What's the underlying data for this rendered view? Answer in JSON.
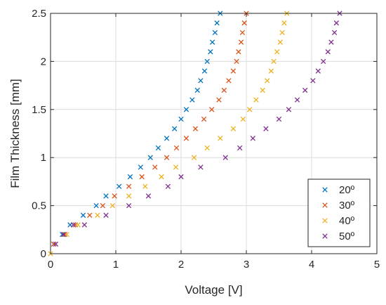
{
  "chart_data": {
    "type": "scatter",
    "title": "",
    "xlabel": "Voltage [V]",
    "ylabel": "Film Thickness [mm]",
    "xlim": [
      0,
      5
    ],
    "ylim": [
      0,
      2.5
    ],
    "xticks": [
      0,
      1,
      2,
      3,
      4,
      5
    ],
    "xtick_labels": [
      "0",
      "1",
      "2",
      "3",
      "4",
      "5"
    ],
    "yticks": [
      0,
      0.5,
      1,
      1.5,
      2,
      2.5
    ],
    "ytick_labels": [
      "0",
      "0.5",
      "1",
      "1.5",
      "2",
      "2.5"
    ],
    "grid": true,
    "legend_position": "bottom-right",
    "marker": "x",
    "series": [
      {
        "name": "20º",
        "color": "#0072BD",
        "points": [
          [
            0.05,
            0.1
          ],
          [
            0.18,
            0.2
          ],
          [
            0.3,
            0.3
          ],
          [
            0.5,
            0.4
          ],
          [
            0.7,
            0.5
          ],
          [
            0.85,
            0.6
          ],
          [
            1.05,
            0.7
          ],
          [
            1.22,
            0.8
          ],
          [
            1.38,
            0.9
          ],
          [
            1.53,
            1.0
          ],
          [
            1.65,
            1.1
          ],
          [
            1.78,
            1.2
          ],
          [
            1.9,
            1.3
          ],
          [
            2.0,
            1.4
          ],
          [
            2.08,
            1.5
          ],
          [
            2.17,
            1.6
          ],
          [
            2.25,
            1.7
          ],
          [
            2.3,
            1.8
          ],
          [
            2.36,
            1.9
          ],
          [
            2.4,
            2.0
          ],
          [
            2.45,
            2.1
          ],
          [
            2.48,
            2.2
          ],
          [
            2.52,
            2.3
          ],
          [
            2.55,
            2.4
          ],
          [
            2.6,
            2.5
          ]
        ]
      },
      {
        "name": "30º",
        "color": "#D95319",
        "points": [
          [
            0.05,
            0.1
          ],
          [
            0.22,
            0.2
          ],
          [
            0.38,
            0.3
          ],
          [
            0.6,
            0.4
          ],
          [
            0.8,
            0.5
          ],
          [
            0.98,
            0.6
          ],
          [
            1.2,
            0.7
          ],
          [
            1.4,
            0.8
          ],
          [
            1.6,
            0.9
          ],
          [
            1.78,
            1.0
          ],
          [
            1.93,
            1.1
          ],
          [
            2.08,
            1.2
          ],
          [
            2.22,
            1.3
          ],
          [
            2.35,
            1.4
          ],
          [
            2.47,
            1.5
          ],
          [
            2.58,
            1.6
          ],
          [
            2.66,
            1.7
          ],
          [
            2.73,
            1.8
          ],
          [
            2.8,
            1.9
          ],
          [
            2.85,
            2.0
          ],
          [
            2.88,
            2.1
          ],
          [
            2.92,
            2.2
          ],
          [
            2.94,
            2.3
          ],
          [
            2.97,
            2.4
          ],
          [
            3.0,
            2.5
          ]
        ]
      },
      {
        "name": "40º",
        "color": "#EDB120",
        "points": [
          [
            0.0,
            0.0
          ],
          [
            0.25,
            0.2
          ],
          [
            0.42,
            0.3
          ],
          [
            0.72,
            0.4
          ],
          [
            0.95,
            0.5
          ],
          [
            1.2,
            0.6
          ],
          [
            1.45,
            0.7
          ],
          [
            1.7,
            0.8
          ],
          [
            1.92,
            0.9
          ],
          [
            2.2,
            1.0
          ],
          [
            2.4,
            1.1
          ],
          [
            2.6,
            1.2
          ],
          [
            2.8,
            1.3
          ],
          [
            2.95,
            1.4
          ],
          [
            3.05,
            1.5
          ],
          [
            3.15,
            1.6
          ],
          [
            3.25,
            1.7
          ],
          [
            3.32,
            1.8
          ],
          [
            3.38,
            1.9
          ],
          [
            3.42,
            2.0
          ],
          [
            3.47,
            2.1
          ],
          [
            3.52,
            2.2
          ],
          [
            3.55,
            2.3
          ],
          [
            3.58,
            2.4
          ],
          [
            3.62,
            2.5
          ]
        ]
      },
      {
        "name": "50º",
        "color": "#7E2F8E",
        "points": [
          [
            0.08,
            0.1
          ],
          [
            0.2,
            0.2
          ],
          [
            0.35,
            0.3
          ],
          [
            0.52,
            0.3
          ],
          [
            0.85,
            0.4
          ],
          [
            1.2,
            0.5
          ],
          [
            1.5,
            0.6
          ],
          [
            1.8,
            0.7
          ],
          [
            2.0,
            0.8
          ],
          [
            2.3,
            0.9
          ],
          [
            2.68,
            1.0
          ],
          [
            2.9,
            1.1
          ],
          [
            3.1,
            1.2
          ],
          [
            3.3,
            1.3
          ],
          [
            3.5,
            1.4
          ],
          [
            3.65,
            1.5
          ],
          [
            3.78,
            1.6
          ],
          [
            3.9,
            1.7
          ],
          [
            4.02,
            1.8
          ],
          [
            4.1,
            1.9
          ],
          [
            4.18,
            2.0
          ],
          [
            4.25,
            2.1
          ],
          [
            4.3,
            2.2
          ],
          [
            4.35,
            2.3
          ],
          [
            4.38,
            2.4
          ],
          [
            4.43,
            2.5
          ]
        ]
      }
    ]
  }
}
